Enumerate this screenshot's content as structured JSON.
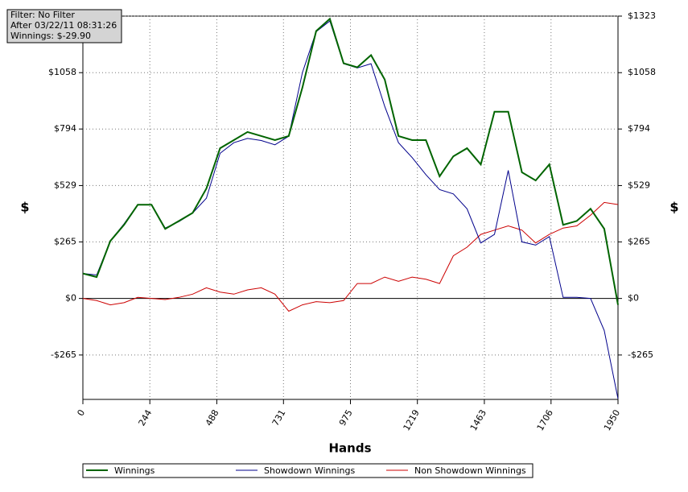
{
  "chart_data": {
    "type": "line",
    "annotation": [
      "Filter: No Filter",
      "After 03/22/11 08:31:26",
      "Winnings: $-29.90"
    ],
    "ylabel": "$",
    "y2label": "$",
    "xlabel": "Hands",
    "x": [
      0,
      50,
      100,
      150,
      200,
      250,
      300,
      350,
      400,
      450,
      500,
      550,
      600,
      650,
      700,
      750,
      800,
      850,
      900,
      950,
      1000,
      1050,
      1100,
      1150,
      1200,
      1250,
      1300,
      1350,
      1400,
      1450,
      1500,
      1550,
      1600,
      1650,
      1700,
      1750,
      1800,
      1850,
      1900,
      1950
    ],
    "series": [
      {
        "name": "Winnings",
        "color": "#006400",
        "width": 2,
        "values": [
          117,
          100,
          269,
          345,
          439,
          439,
          326,
          363,
          401,
          515,
          704,
          742,
          780,
          761,
          742,
          761,
          988,
          1253,
          1310,
          1102,
          1083,
          1140,
          1026,
          761,
          742,
          742,
          572,
          666,
          704,
          628,
          875,
          875,
          591,
          553,
          628,
          345,
          363,
          420,
          326,
          -30
        ]
      },
      {
        "name": "Showdown Winnings",
        "color": "#00008b",
        "width": 1,
        "values": [
          117,
          110,
          270,
          350,
          440,
          440,
          330,
          360,
          400,
          470,
          680,
          730,
          750,
          740,
          720,
          760,
          1058,
          1250,
          1300,
          1100,
          1080,
          1100,
          900,
          730,
          660,
          580,
          510,
          490,
          420,
          260,
          300,
          600,
          265,
          250,
          290,
          5,
          5,
          0,
          -150,
          -470
        ]
      },
      {
        "name": "Non Showdown Winnings",
        "color": "#cc0000",
        "width": 1,
        "values": [
          0,
          -10,
          -30,
          -20,
          5,
          0,
          -5,
          5,
          20,
          50,
          30,
          20,
          40,
          50,
          20,
          -60,
          -30,
          -15,
          -20,
          -10,
          70,
          70,
          100,
          80,
          100,
          90,
          70,
          200,
          240,
          300,
          320,
          340,
          320,
          260,
          300,
          330,
          340,
          390,
          450,
          440
        ]
      }
    ],
    "xlim": [
      0,
      1950
    ],
    "xticks": [
      0,
      244,
      488,
      731,
      975,
      1219,
      1463,
      1706,
      1950
    ],
    "ylim": [
      -473,
      1323
    ],
    "yticks": [
      {
        "value": -265,
        "label": "-$265"
      },
      {
        "value": 0,
        "label": "$0"
      },
      {
        "value": 265,
        "label": "$265"
      },
      {
        "value": 529,
        "label": "$529"
      },
      {
        "value": 794,
        "label": "$794"
      },
      {
        "value": 1058,
        "label": "$1058"
      },
      {
        "value": 1323,
        "label": "$1323"
      }
    ],
    "grid": true
  }
}
